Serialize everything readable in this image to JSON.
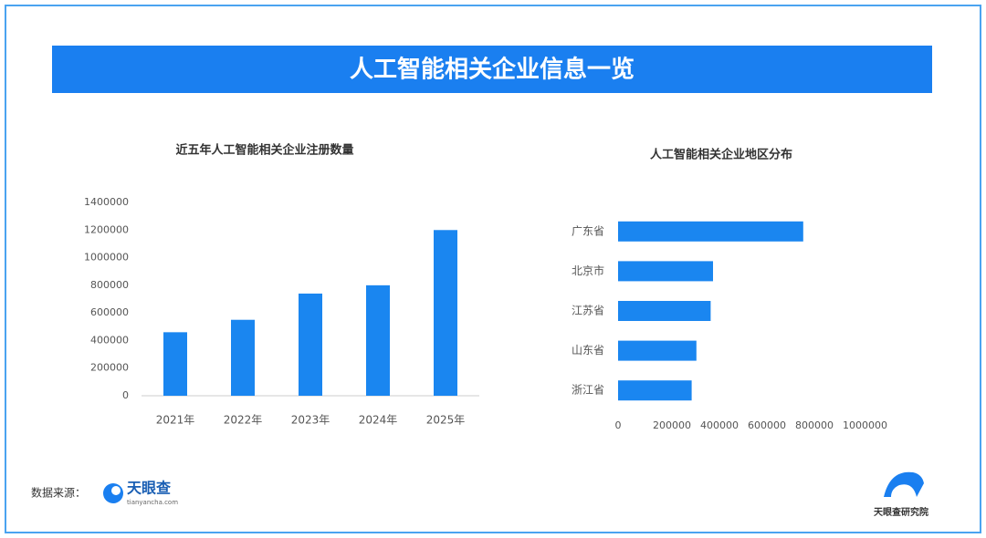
{
  "header": {
    "title": "人工智能相关企业信息一览"
  },
  "chart_data": [
    {
      "type": "bar",
      "title": "近五年人工智能相关企业注册数量",
      "categories": [
        "2021年",
        "2022年",
        "2023年",
        "2024年",
        "2025年"
      ],
      "values": [
        460000,
        550000,
        740000,
        800000,
        1200000
      ],
      "color": "#1a86f0",
      "ylim": [
        0,
        1400000
      ],
      "yticks": [
        0,
        200000,
        400000,
        600000,
        800000,
        1000000,
        1200000,
        1400000
      ],
      "grid": false
    },
    {
      "type": "barh",
      "title": "人工智能相关企业地区分布",
      "categories": [
        "广东省",
        "北京市",
        "江苏省",
        "山东省",
        "浙江省"
      ],
      "values": [
        780000,
        400000,
        390000,
        330000,
        310000
      ],
      "color": "#1a86f0",
      "xlim": [
        0,
        1000000
      ],
      "xticks": [
        0,
        200000,
        400000,
        600000,
        800000,
        1000000
      ],
      "grid": false
    }
  ],
  "footer": {
    "source_label": "数据来源：",
    "source_name": "天眼查",
    "source_url": "tianyancha.com",
    "institute": "天眼查研究院"
  }
}
